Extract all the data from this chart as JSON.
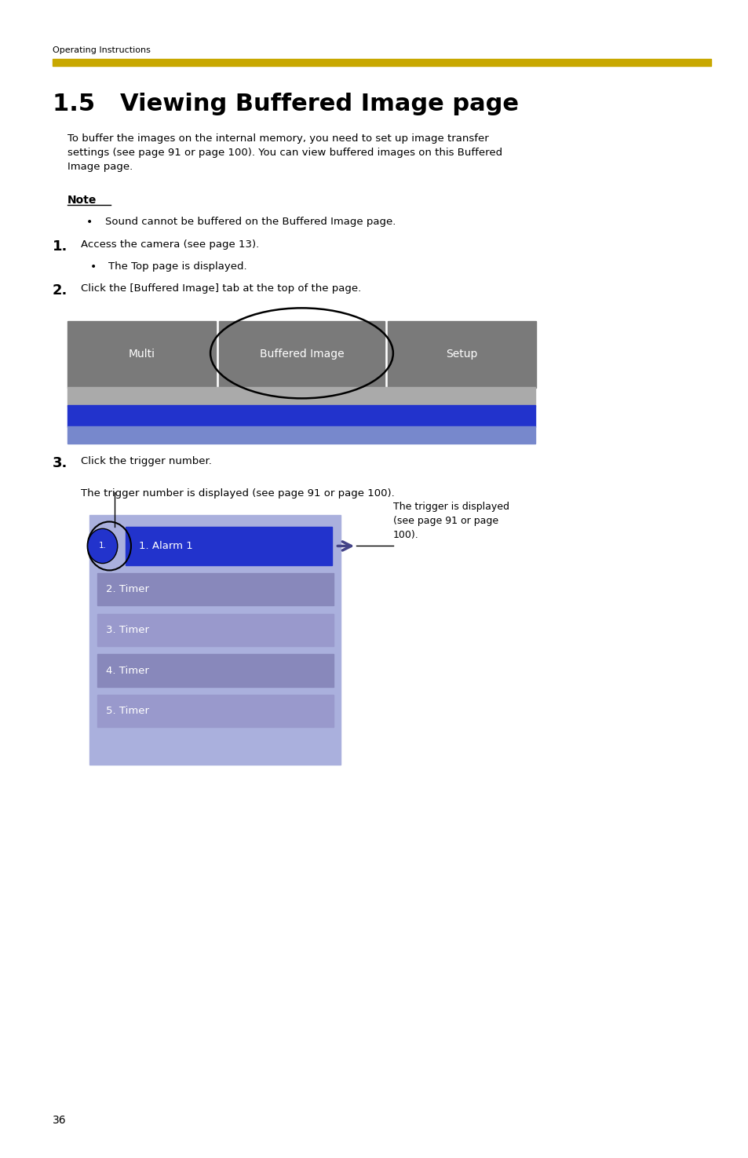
{
  "bg_color": "#ffffff",
  "header_text": "Operating Instructions",
  "header_color": "#000000",
  "header_fontsize": 8,
  "gold_bar_color": "#C8A800",
  "title": "1.5   Viewing Buffered Image page",
  "title_fontsize": 22,
  "body_text_1": "To buffer the images on the internal memory, you need to set up image transfer\nsettings (see page 91 or page 100). You can view buffered images on this Buffered\nImage page.",
  "note_label": "Note",
  "bullet1": "Sound cannot be buffered on the Buffered Image page.",
  "step1_num": "1.",
  "step1_text": "Access the camera (see page 13).",
  "bullet2": "The Top page is displayed.",
  "step2_num": "2.",
  "step2_text": "Click the [Buffered Image] tab at the top of the page.",
  "tab_multi_text": "Multi",
  "tab_buffered_text": "Buffered Image",
  "tab_setup_text": "Setup",
  "step3_num": "3.",
  "step3_text": "Click the trigger number.",
  "trigger_note": "The trigger number is displayed (see page 91 or page 100).",
  "panel_bg": "#aab0dd",
  "alarm_bar_color": "#2233cc",
  "alarm_text": "1. Alarm 1",
  "timer_items": [
    "2. Timer",
    "3. Timer",
    "4. Timer",
    "5. Timer"
  ],
  "callout_text": "The trigger is displayed\n(see page 91 or page\n100).",
  "page_number": "36",
  "font_color_body": "#000000"
}
